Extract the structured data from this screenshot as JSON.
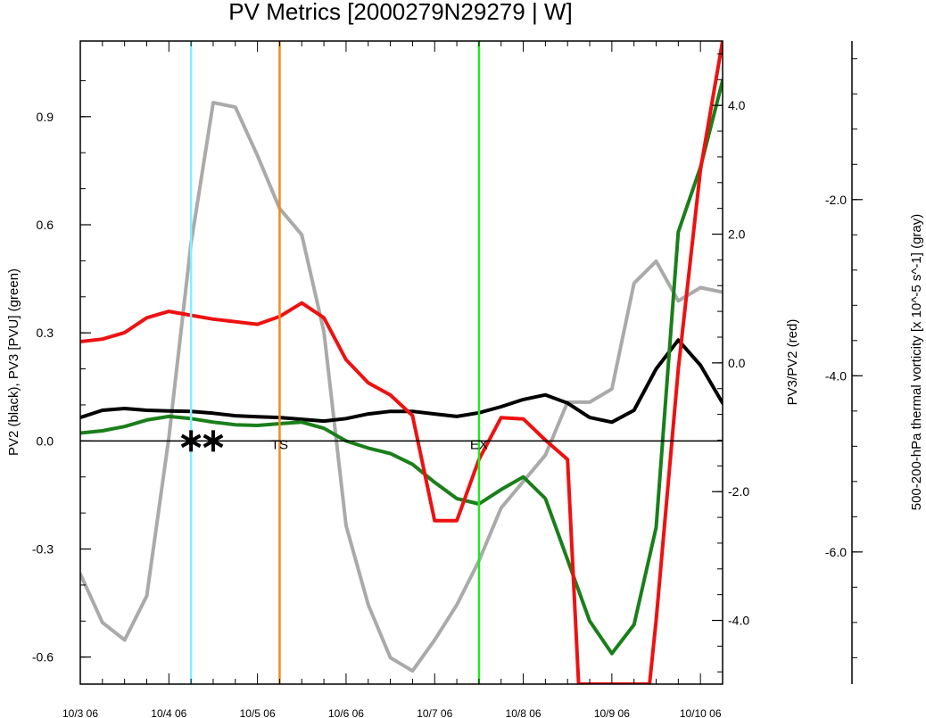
{
  "chart_data": {
    "type": "line",
    "title": "PV Metrics [2000279N29279 | W]",
    "x_unit": "6-hourly time steps starting 10/3 06",
    "x_ticks": [
      {
        "x": 0,
        "label": "10/3 06"
      },
      {
        "x": 4,
        "label": "10/4 06"
      },
      {
        "x": 8,
        "label": "10/5 06"
      },
      {
        "x": 12,
        "label": "10/6 06"
      },
      {
        "x": 16,
        "label": "10/7 06"
      },
      {
        "x": 20,
        "label": "10/8 06"
      },
      {
        "x": 24,
        "label": "10/9 06"
      },
      {
        "x": 28,
        "label": "10/10 06"
      }
    ],
    "xlim": [
      0,
      29
    ],
    "axes": {
      "left": {
        "label": "PV2 (black), PV3 [PVU] (green)",
        "ylim": [
          -0.675,
          1.11
        ],
        "ticks": [
          -0.6,
          -0.3,
          0.0,
          0.3,
          0.6,
          0.9
        ],
        "tick_labels": [
          "-0.6",
          "-0.3",
          "0.0",
          "0.3",
          "0.6",
          "0.9"
        ]
      },
      "right": {
        "label": "PV3/PV2 (red)",
        "ylim": [
          -4.99,
          5.0
        ],
        "ticks": [
          -4.0,
          -2.0,
          0.0,
          2.0,
          4.0
        ],
        "tick_labels": [
          "-4.0",
          "-2.0",
          "0.0",
          "2.0",
          "4.0"
        ]
      },
      "far_right": {
        "label": "500-200-hPa thermal vorticity [x 10^-5 s^-1] (gray)",
        "ylim": [
          -7.5,
          -0.2
        ],
        "ticks": [
          -6.0,
          -4.0,
          -2.0
        ],
        "tick_labels": [
          "-6.0",
          "-4.0",
          "-2.0"
        ]
      }
    },
    "zero_line": 0.0,
    "series": [
      {
        "color": "#aaaaaa",
        "axis": "far_right",
        "x": [
          0,
          1,
          2,
          3,
          4,
          5,
          6,
          7,
          8,
          9,
          10,
          11,
          12,
          13,
          14,
          15,
          16,
          17,
          18,
          19,
          20,
          21,
          22,
          23,
          24,
          25,
          26,
          27,
          28,
          29
        ],
        "values": [
          -6.25,
          -6.8,
          -7.0,
          -6.5,
          -4.7,
          -2.5,
          -0.9,
          -0.95,
          -1.5,
          -2.1,
          -2.4,
          -3.5,
          -5.7,
          -6.6,
          -7.2,
          -7.35,
          -7.0,
          -6.6,
          -6.1,
          -5.5,
          -5.2,
          -4.9,
          -4.3,
          -4.3,
          -4.15,
          -2.95,
          -2.7,
          -3.15,
          -3.0,
          -3.05
        ]
      },
      {
        "color": "#000000",
        "axis": "left",
        "x": [
          0,
          1,
          2,
          3,
          4,
          5,
          6,
          7,
          8,
          9,
          10,
          11,
          12,
          13,
          14,
          15,
          16,
          17,
          18,
          19,
          20,
          21,
          22,
          23,
          24,
          25,
          26,
          27,
          28,
          29
        ],
        "values": [
          0.065,
          0.085,
          0.09,
          0.085,
          0.083,
          0.082,
          0.077,
          0.07,
          0.067,
          0.065,
          0.06,
          0.055,
          0.062,
          0.075,
          0.082,
          0.082,
          0.075,
          0.068,
          0.078,
          0.095,
          0.115,
          0.128,
          0.105,
          0.065,
          0.052,
          0.085,
          0.2,
          0.28,
          0.21,
          0.105
        ]
      },
      {
        "color": "#1a7f1a",
        "axis": "left",
        "x": [
          0,
          1,
          2,
          3,
          4,
          5,
          6,
          7,
          8,
          9,
          10,
          11,
          12,
          13,
          14,
          15,
          16,
          17,
          18,
          19,
          20,
          21,
          22,
          23,
          24,
          25,
          26,
          27,
          28,
          29
        ],
        "values": [
          0.022,
          0.028,
          0.04,
          0.058,
          0.068,
          0.062,
          0.052,
          0.045,
          0.043,
          0.048,
          0.052,
          0.035,
          0.0,
          -0.02,
          -0.035,
          -0.065,
          -0.115,
          -0.16,
          -0.175,
          -0.135,
          -0.1,
          -0.16,
          -0.33,
          -0.5,
          -0.59,
          -0.51,
          -0.24,
          0.58,
          0.76,
          1.0
        ]
      },
      {
        "color": "#ee1111",
        "axis": "right",
        "x": [
          0,
          1,
          2,
          3,
          4,
          5,
          6,
          7,
          8,
          9,
          10,
          11,
          12,
          13,
          14,
          15,
          16,
          17,
          18,
          19,
          20,
          21,
          22,
          22.5,
          25.7,
          26,
          27,
          28,
          29
        ],
        "values": [
          0.33,
          0.37,
          0.47,
          0.7,
          0.8,
          0.74,
          0.68,
          0.64,
          0.6,
          0.72,
          0.93,
          0.7,
          0.05,
          -0.31,
          -0.5,
          -0.82,
          -2.45,
          -2.45,
          -1.5,
          -0.85,
          -0.87,
          -1.2,
          -1.5,
          -4.99,
          -4.99,
          -4.0,
          -0.1,
          3.0,
          5.0
        ]
      }
    ],
    "vertical_lines": [
      {
        "x": 5,
        "color": "#7ff0ff"
      },
      {
        "x": 9,
        "color": "#f28a1e"
      },
      {
        "x": 18,
        "color": "#22e822"
      }
    ],
    "annotations": [
      {
        "x": 5,
        "y": 0.0,
        "text": "**"
      },
      {
        "x": 9,
        "y": 0.0,
        "text": "TS"
      },
      {
        "x": 18,
        "y": 0.0,
        "text": "EX"
      }
    ],
    "star_markers": [
      5,
      6
    ]
  }
}
